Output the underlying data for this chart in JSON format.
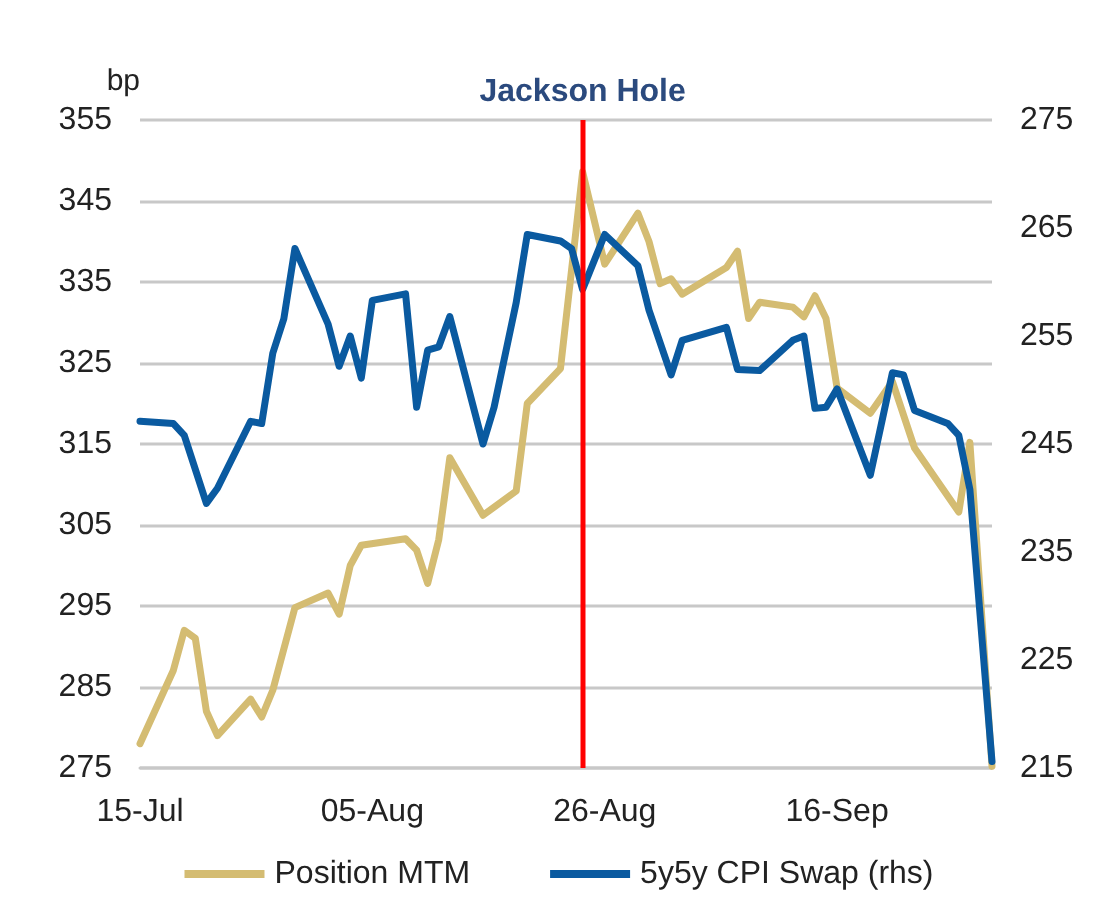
{
  "chart_data": {
    "type": "line",
    "ylabel": "bp",
    "xlim": [
      "--07-15",
      "--09-30"
    ],
    "xticks": [
      {
        "value": "--07-15",
        "label": "15-Jul"
      },
      {
        "value": "--08-05",
        "label": "05-Aug"
      },
      {
        "value": "--08-26",
        "label": "26-Aug"
      },
      {
        "value": "--09-16",
        "label": "16-Sep"
      }
    ],
    "ylim": [
      275,
      355
    ],
    "yticks": [
      275,
      285,
      295,
      305,
      315,
      325,
      335,
      345,
      355
    ],
    "y2lim": [
      215,
      275
    ],
    "y2ticks": [
      215,
      225,
      235,
      245,
      255,
      265,
      275
    ],
    "grid": "y",
    "legend": "bottom",
    "marker": "none",
    "line_style": "solid",
    "ref_lines": [
      {
        "axis": "x",
        "value": "--08-24",
        "label": "Jackson Hole",
        "color": "#ff0000"
      }
    ],
    "series": [
      {
        "name": "Position MTM",
        "color": "#d4bc72",
        "x": [
          "--07-15",
          "--07-18",
          "--07-19",
          "--07-20",
          "--07-21",
          "--07-22",
          "--07-25",
          "--07-26",
          "--07-27",
          "--07-29",
          "--08-01",
          "--08-02",
          "--08-03",
          "--08-04",
          "--08-08",
          "--08-09",
          "--08-10",
          "--08-11",
          "--08-12",
          "--08-15",
          "--08-18",
          "--08-19",
          "--08-22",
          "--08-24",
          "--08-26",
          "--08-29",
          "--08-30",
          "--08-31",
          "--09-01",
          "--09-02",
          "--09-06",
          "--09-07",
          "--09-08",
          "--09-09",
          "--09-12",
          "--09-13",
          "--09-14",
          "--09-15",
          "--09-16",
          "--09-19",
          "--09-21",
          "--09-23",
          "--09-27",
          "--09-28",
          "--09-30"
        ],
        "values": [
          278,
          287,
          292,
          291,
          282,
          279,
          283.5,
          281.3,
          284.6,
          294.8,
          296.6,
          294,
          300,
          302.5,
          303.3,
          301.9,
          297.8,
          303.2,
          313.3,
          306.2,
          309.2,
          320,
          324.3,
          348.6,
          337.2,
          343.5,
          340,
          334.8,
          335.4,
          333.5,
          336.8,
          338.8,
          330.5,
          332.5,
          331.9,
          330.7,
          333.3,
          330.5,
          321.9,
          318.8,
          322.7,
          314.5,
          306.6,
          315.2,
          275.2
        ]
      },
      {
        "name": "5y5y CPI Swap (rhs)",
        "color": "#0a5aa0",
        "axis": "y2",
        "x": [
          "--07-15",
          "--07-18",
          "--07-19",
          "--07-21",
          "--07-22",
          "--07-25",
          "--07-26",
          "--07-27",
          "--07-28",
          "--07-29",
          "--08-01",
          "--08-02",
          "--08-03",
          "--08-04",
          "--08-05",
          "--08-08",
          "--08-09",
          "--08-10",
          "--08-11",
          "--08-12",
          "--08-15",
          "--08-16",
          "--08-18",
          "--08-19",
          "--08-22",
          "--08-23",
          "--08-24",
          "--08-26",
          "--08-29",
          "--08-30",
          "--09-01",
          "--09-02",
          "--09-06",
          "--09-07",
          "--09-09",
          "--09-12",
          "--09-13",
          "--09-14",
          "--09-15",
          "--09-16",
          "--09-19",
          "--09-21",
          "--09-22",
          "--09-23",
          "--09-26",
          "--09-27",
          "--09-28",
          "--09-30"
        ],
        "values": [
          247.1,
          246.9,
          245.8,
          239.5,
          240.9,
          247.1,
          246.9,
          253.4,
          256.6,
          263.1,
          256.1,
          252.2,
          255,
          251.1,
          258.3,
          258.9,
          248.4,
          253.7,
          254,
          256.8,
          245,
          248.4,
          258.1,
          264.4,
          263.8,
          263.1,
          259.3,
          264.4,
          261.5,
          257.4,
          251.4,
          254.6,
          255.8,
          251.9,
          251.8,
          254.6,
          255,
          248.3,
          248.4,
          250.1,
          242.1,
          251.6,
          251.4,
          248.1,
          246.9,
          245.8,
          240.8,
          215.6
        ]
      }
    ]
  }
}
